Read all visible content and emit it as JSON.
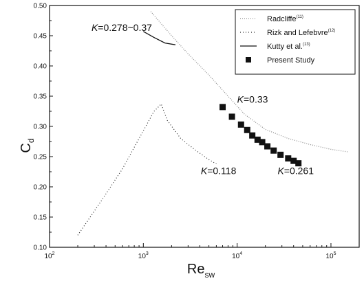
{
  "chart_data": {
    "type": "scatter",
    "xlabel": "Re",
    "xlabel_sub": "sw",
    "ylabel": "C",
    "ylabel_sub": "d",
    "xscale": "log",
    "xlim": [
      100,
      200000
    ],
    "ylim": [
      0.1,
      0.5
    ],
    "xticks": [
      {
        "value": 100,
        "base": "10",
        "exp": "2"
      },
      {
        "value": 1000,
        "base": "10",
        "exp": "3"
      },
      {
        "value": 10000,
        "base": "10",
        "exp": "4"
      },
      {
        "value": 100000,
        "base": "10",
        "exp": "5"
      }
    ],
    "yticks": [
      {
        "value": 0.1,
        "label": "0.10"
      },
      {
        "value": 0.15,
        "label": "0.15"
      },
      {
        "value": 0.2,
        "label": "0.20"
      },
      {
        "value": 0.25,
        "label": "0.25"
      },
      {
        "value": 0.3,
        "label": "0.30"
      },
      {
        "value": 0.35,
        "label": "0.35"
      },
      {
        "value": 0.4,
        "label": "0.40"
      },
      {
        "value": 0.45,
        "label": "0.45"
      },
      {
        "value": 0.5,
        "label": "0.50"
      }
    ],
    "legend_position": "top-right",
    "series": [
      {
        "name": "Radcliffe",
        "ref": "(11)",
        "style": "dotted-light",
        "color": "#9a9a9a",
        "points": [
          [
            1200,
            0.49
          ],
          [
            2000,
            0.45
          ],
          [
            3000,
            0.42
          ],
          [
            5000,
            0.385
          ],
          [
            8000,
            0.35
          ],
          [
            12000,
            0.32
          ],
          [
            20000,
            0.295
          ],
          [
            35000,
            0.28
          ],
          [
            60000,
            0.27
          ],
          [
            100000,
            0.262
          ],
          [
            150000,
            0.258
          ]
        ]
      },
      {
        "name": "Rizk and Lefebvre",
        "ref": "(12)",
        "style": "dotted-dark",
        "color": "#333333",
        "points": [
          [
            200,
            0.12
          ],
          [
            350,
            0.175
          ],
          [
            600,
            0.23
          ],
          [
            900,
            0.28
          ],
          [
            1300,
            0.325
          ],
          [
            1550,
            0.337
          ],
          [
            1800,
            0.31
          ],
          [
            2500,
            0.28
          ],
          [
            3500,
            0.262
          ],
          [
            5000,
            0.245
          ],
          [
            6000,
            0.238
          ]
        ]
      },
      {
        "name": "Kutty et al.",
        "ref": "(13)",
        "style": "solid",
        "color": "#111111",
        "points": [
          [
            1000,
            0.457
          ],
          [
            1300,
            0.447
          ],
          [
            1700,
            0.438
          ],
          [
            2200,
            0.435
          ]
        ]
      },
      {
        "name": "Present Study",
        "ref": "",
        "style": "square-marker",
        "color": "#111111",
        "points": [
          [
            7000,
            0.332
          ],
          [
            8800,
            0.316
          ],
          [
            11000,
            0.303
          ],
          [
            12800,
            0.294
          ],
          [
            14500,
            0.285
          ],
          [
            16500,
            0.278
          ],
          [
            18500,
            0.274
          ],
          [
            21000,
            0.267
          ],
          [
            24500,
            0.26
          ],
          [
            29000,
            0.253
          ],
          [
            35000,
            0.247
          ],
          [
            40000,
            0.243
          ],
          [
            45000,
            0.239
          ]
        ]
      }
    ],
    "annotations": [
      {
        "id": "k1",
        "text": "K=0.278~0.37",
        "x": 280,
        "y": 0.458
      },
      {
        "id": "k2",
        "text": "K=0.33",
        "x": 10000,
        "y": 0.339
      },
      {
        "id": "k3",
        "text": "K=0.118",
        "x": 4100,
        "y": 0.221
      },
      {
        "id": "k4",
        "text": "K=0.261",
        "x": 27000,
        "y": 0.221
      }
    ]
  }
}
